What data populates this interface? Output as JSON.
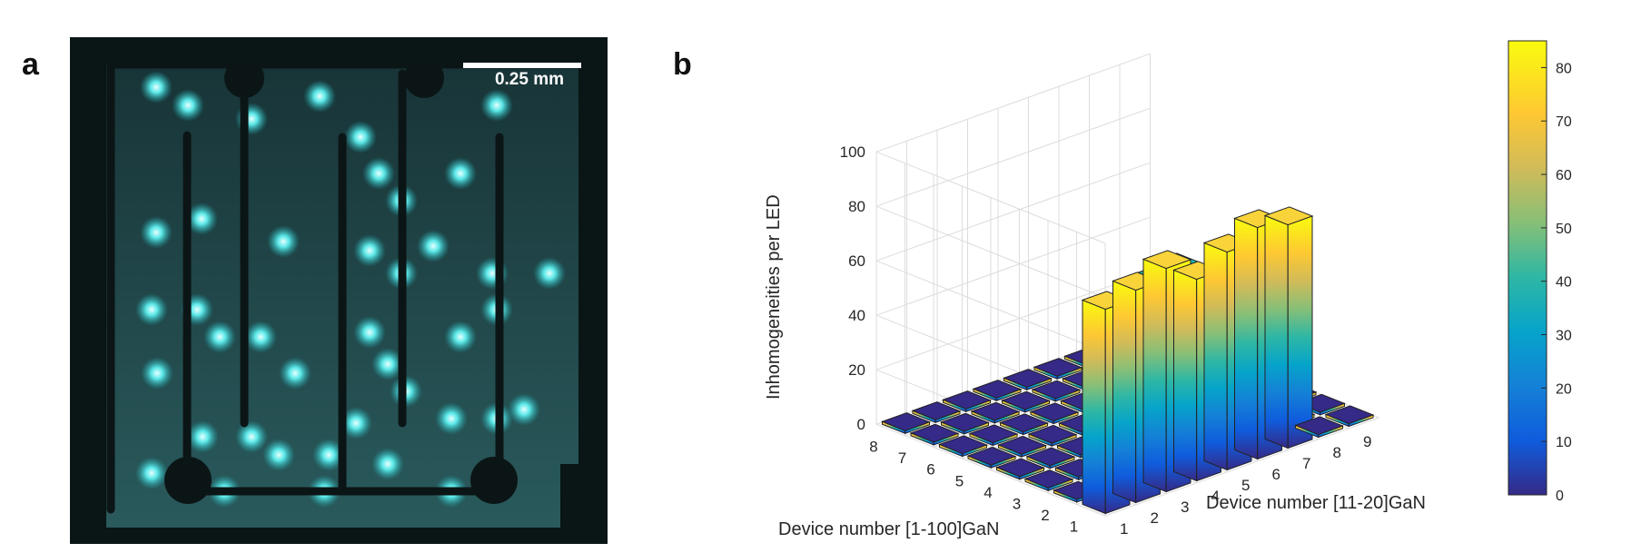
{
  "panels": {
    "a": {
      "label": "a",
      "scale_bar": "0.25 mm"
    },
    "b": {
      "label": "b"
    }
  },
  "chart_data": {
    "type": "bar3d",
    "zlabel": "Inhomogeneities per LED",
    "ylabel": "Device number [1-100]GaN",
    "xlabel": "Device number [11-20]GaN",
    "x_ticks": [
      "1",
      "2",
      "3",
      "4",
      "5",
      "6",
      "7",
      "8",
      "9"
    ],
    "y_ticks": [
      "8",
      "7",
      "6",
      "5",
      "4",
      "3",
      "2",
      "1"
    ],
    "z_ticks": [
      "0",
      "20",
      "40",
      "60",
      "80",
      "100"
    ],
    "zlim": [
      0,
      100
    ],
    "colorbar": {
      "ticks": [
        "0",
        "10",
        "20",
        "30",
        "40",
        "50",
        "60",
        "70",
        "80"
      ],
      "lim": [
        0,
        85
      ],
      "colormap": "parula"
    },
    "grid": true,
    "values_by_row": [
      {
        "row": "8",
        "values": [
          1,
          1,
          1,
          1,
          1,
          1,
          1,
          1,
          1
        ]
      },
      {
        "row": "7",
        "values": [
          1,
          1,
          1,
          1,
          1,
          1,
          1,
          28,
          1
        ]
      },
      {
        "row": "6",
        "values": [
          1,
          1,
          1,
          1,
          1,
          1,
          38,
          40,
          1
        ]
      },
      {
        "row": "5",
        "values": [
          1,
          1,
          1,
          1,
          1,
          1,
          1,
          1,
          1
        ]
      },
      {
        "row": "4",
        "values": [
          1,
          1,
          1,
          32,
          42,
          43,
          1,
          1,
          1
        ]
      },
      {
        "row": "3",
        "values": [
          1,
          1,
          1,
          42,
          48,
          52,
          1,
          1,
          1
        ]
      },
      {
        "row": "2",
        "values": [
          1,
          1,
          30,
          40,
          45,
          50,
          45,
          1,
          1
        ]
      },
      {
        "row": "1",
        "values": [
          75,
          78,
          82,
          74,
          80,
          85,
          82,
          1,
          1
        ]
      }
    ]
  }
}
